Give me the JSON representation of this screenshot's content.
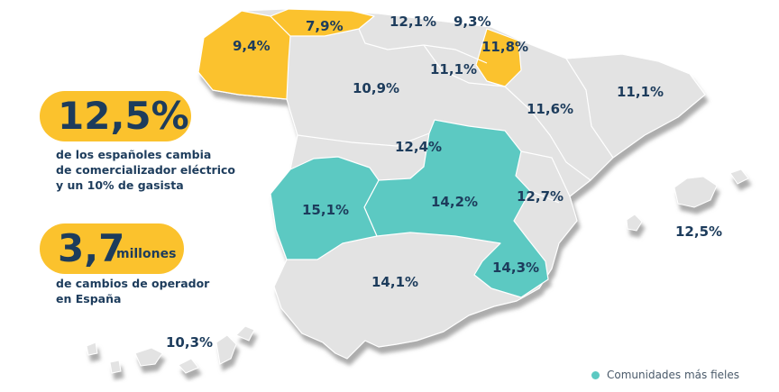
{
  "colors": {
    "highlight_yellow": "#fbc22d",
    "highlight_teal": "#5cc9c2",
    "region_gray": "#e3e3e3",
    "text_navy": "#1d3c5c"
  },
  "stats": {
    "switch_rate": {
      "value": "12,5%",
      "text_lines": [
        "de los españoles cambia",
        "de comercializador eléctrico",
        "y un 10% de gasista"
      ]
    },
    "operator_changes": {
      "value": "3,7",
      "unit": "millones",
      "text_lines": [
        "de cambios de operador",
        "en España"
      ]
    }
  },
  "region_labels": {
    "galicia": "9,4%",
    "asturias": "7,9%",
    "cantabria": "12,1%",
    "pais_vasco": "9,3%",
    "navarra": "11,8%",
    "la_rioja": "11,1%",
    "castilla_leon": "10,9%",
    "aragon": "11,6%",
    "cataluna": "11,1%",
    "madrid": "12,4%",
    "castilla_la_mancha": "14,2%",
    "extremadura": "15,1%",
    "valencia": "12,7%",
    "murcia": "14,3%",
    "andalucia": "14,1%",
    "baleares": "12,5%",
    "canarias": "10,3%"
  },
  "legend": {
    "label": "Comunidades más fieles"
  }
}
